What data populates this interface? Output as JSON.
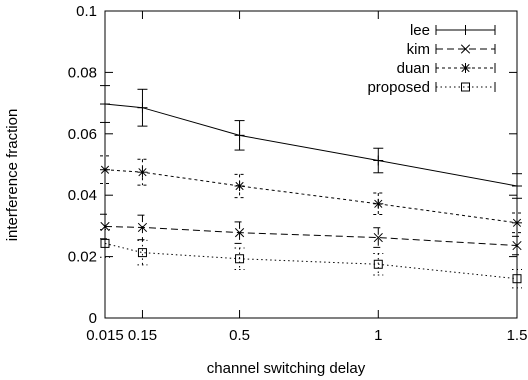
{
  "chart_data": {
    "type": "line",
    "title": "",
    "xlabel": "channel switching delay",
    "ylabel": "interference fraction",
    "xlim": [
      0.015,
      1.5
    ],
    "ylim": [
      0,
      0.1
    ],
    "xticks": [
      0.015,
      0.15,
      0.5,
      1,
      1.5
    ],
    "xtick_labels": [
      "0.015",
      "0.15",
      "0.5",
      "1",
      "1.5"
    ],
    "yticks": [
      0,
      0.02,
      0.04,
      0.06,
      0.08,
      0.1
    ],
    "ytick_labels": [
      "0",
      "0.02",
      "0.04",
      "0.06",
      "0.08",
      "0.1"
    ],
    "grid": false,
    "legend_position": "top-right",
    "x": [
      0.015,
      0.15,
      0.5,
      1,
      1.5
    ],
    "series": [
      {
        "name": "lee",
        "marker": "plus",
        "dash": "solid",
        "values": [
          0.0697,
          0.0685,
          0.0595,
          0.0513,
          0.043
        ],
        "errors": [
          0.006,
          0.006,
          0.0048,
          0.004,
          0.004
        ]
      },
      {
        "name": "kim",
        "marker": "cross",
        "dash": "dashed",
        "values": [
          0.0298,
          0.0295,
          0.0278,
          0.0262,
          0.0236
        ],
        "errors": [
          0.004,
          0.004,
          0.0035,
          0.0032,
          0.003
        ]
      },
      {
        "name": "duan",
        "marker": "star",
        "dash": "dense-dotted",
        "values": [
          0.0483,
          0.0475,
          0.043,
          0.0372,
          0.031
        ],
        "errors": [
          0.0045,
          0.0042,
          0.0038,
          0.0035,
          0.0032
        ]
      },
      {
        "name": "proposed",
        "marker": "square",
        "dash": "dotted",
        "values": [
          0.0243,
          0.0213,
          0.0193,
          0.0175,
          0.0128
        ],
        "errors": [
          0.0045,
          0.004,
          0.0035,
          0.0035,
          0.003
        ]
      }
    ]
  }
}
